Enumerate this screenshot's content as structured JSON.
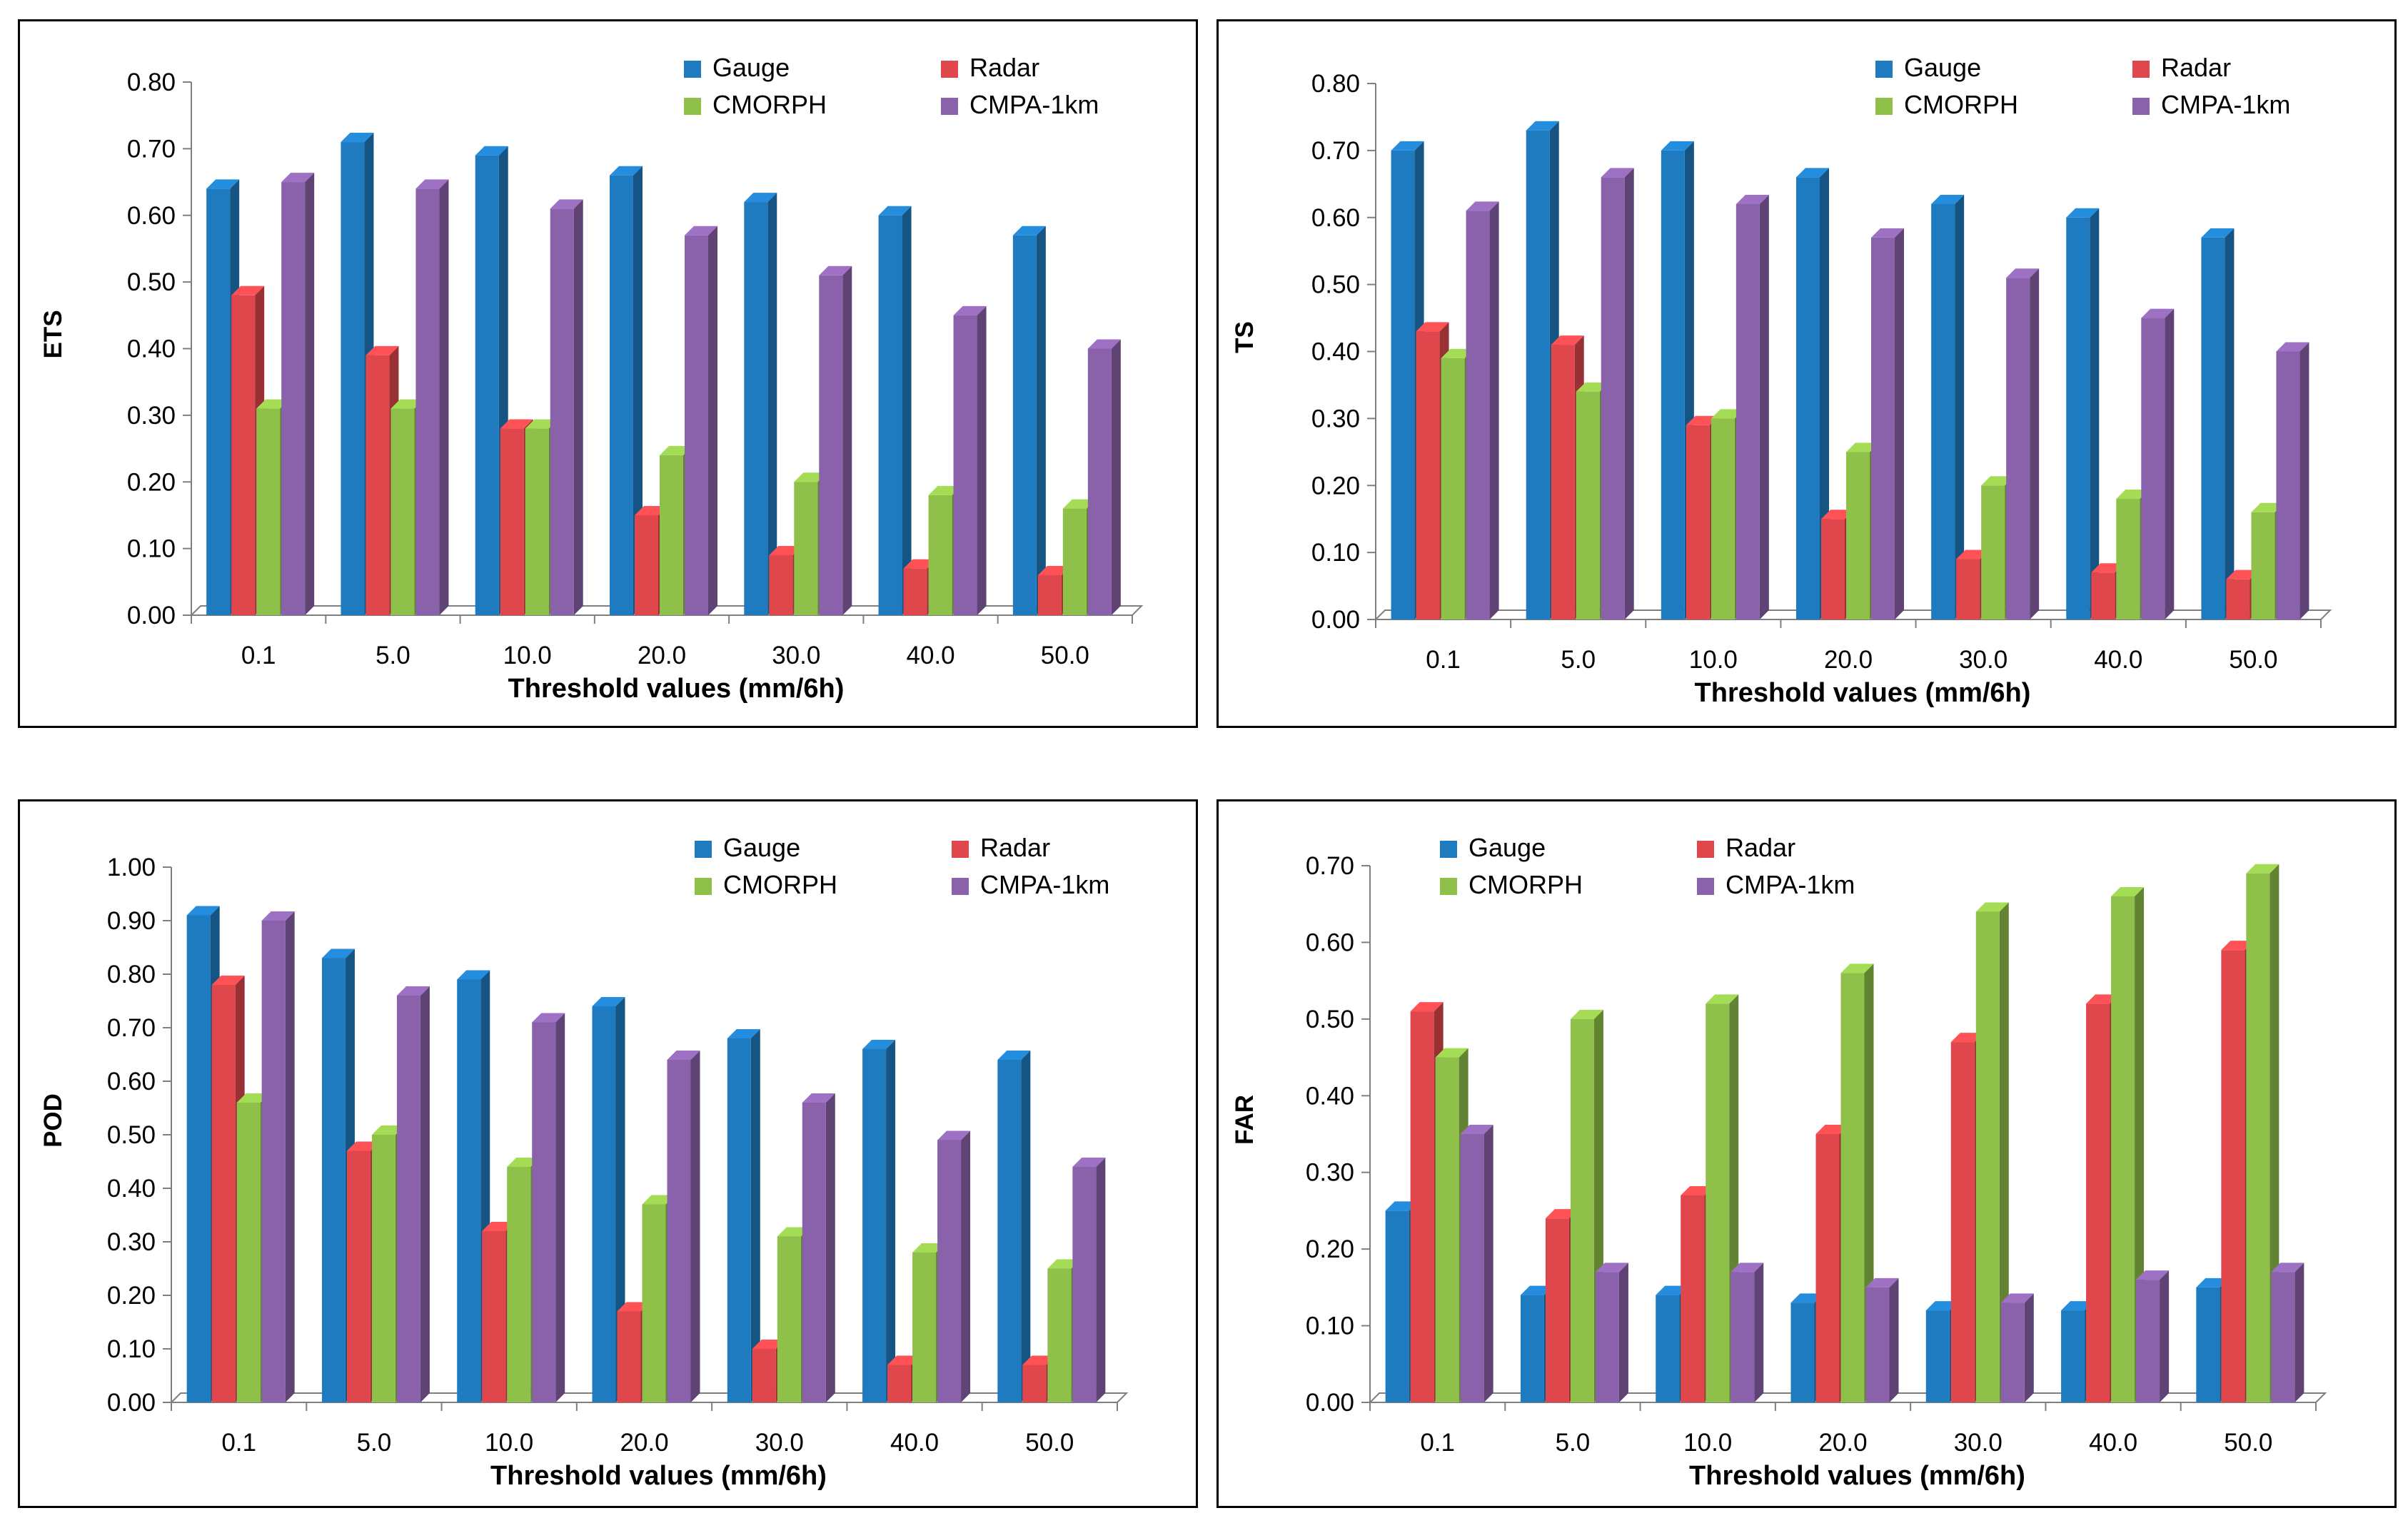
{
  "colors": {
    "gauge": "#1f7bc0",
    "radar": "#e0474c",
    "cmorph": "#8fc04a",
    "cmpa": "#8a62ab"
  },
  "charts": [
    {
      "type": "bar",
      "title": "",
      "ylabel": "ETS",
      "xlabel": "Threshold values (mm/6h)",
      "categories": [
        "0.1",
        "5.0",
        "10.0",
        "20.0",
        "30.0",
        "40.0",
        "50.0"
      ],
      "ylim": [
        0,
        0.8
      ],
      "yticks": [
        "0.00",
        "0.10",
        "0.20",
        "0.30",
        "0.40",
        "0.50",
        "0.60",
        "0.70",
        "0.80"
      ],
      "legend_position": "top-right",
      "series": [
        {
          "name": "Gauge",
          "values": [
            0.64,
            0.71,
            0.69,
            0.66,
            0.62,
            0.6,
            0.57
          ]
        },
        {
          "name": "Radar",
          "values": [
            0.48,
            0.39,
            0.28,
            0.15,
            0.09,
            0.07,
            0.06
          ]
        },
        {
          "name": "CMORPH",
          "values": [
            0.31,
            0.31,
            0.28,
            0.24,
            0.2,
            0.18,
            0.16
          ]
        },
        {
          "name": "CMPA-1km",
          "values": [
            0.65,
            0.64,
            0.61,
            0.57,
            0.51,
            0.45,
            0.4
          ]
        }
      ]
    },
    {
      "type": "bar",
      "title": "",
      "ylabel": "TS",
      "xlabel": "Threshold values (mm/6h)",
      "categories": [
        "0.1",
        "5.0",
        "10.0",
        "20.0",
        "30.0",
        "40.0",
        "50.0"
      ],
      "ylim": [
        0,
        0.8
      ],
      "yticks": [
        "0.00",
        "0.10",
        "0.20",
        "0.30",
        "0.40",
        "0.50",
        "0.60",
        "0.70",
        "0.80"
      ],
      "legend_position": "top-right",
      "series": [
        {
          "name": "Gauge",
          "values": [
            0.7,
            0.73,
            0.7,
            0.66,
            0.62,
            0.6,
            0.57
          ]
        },
        {
          "name": "Radar",
          "values": [
            0.43,
            0.41,
            0.29,
            0.15,
            0.09,
            0.07,
            0.06
          ]
        },
        {
          "name": "CMORPH",
          "values": [
            0.39,
            0.34,
            0.3,
            0.25,
            0.2,
            0.18,
            0.16
          ]
        },
        {
          "name": "CMPA-1km",
          "values": [
            0.61,
            0.66,
            0.62,
            0.57,
            0.51,
            0.45,
            0.4
          ]
        }
      ]
    },
    {
      "type": "bar",
      "title": "",
      "ylabel": "POD",
      "xlabel": "Threshold values (mm/6h)",
      "categories": [
        "0.1",
        "5.0",
        "10.0",
        "20.0",
        "30.0",
        "40.0",
        "50.0"
      ],
      "ylim": [
        0,
        1.0
      ],
      "yticks": [
        "0.00",
        "0.10",
        "0.20",
        "0.30",
        "0.40",
        "0.50",
        "0.60",
        "0.70",
        "0.80",
        "0.90",
        "1.00"
      ],
      "legend_position": "top-right",
      "series": [
        {
          "name": "Gauge",
          "values": [
            0.91,
            0.83,
            0.79,
            0.74,
            0.68,
            0.66,
            0.64
          ]
        },
        {
          "name": "Radar",
          "values": [
            0.78,
            0.47,
            0.32,
            0.17,
            0.1,
            0.07,
            0.07
          ]
        },
        {
          "name": "CMORPH",
          "values": [
            0.56,
            0.5,
            0.44,
            0.37,
            0.31,
            0.28,
            0.25
          ]
        },
        {
          "name": "CMPA-1km",
          "values": [
            0.9,
            0.76,
            0.71,
            0.64,
            0.56,
            0.49,
            0.44
          ]
        }
      ]
    },
    {
      "type": "bar",
      "title": "",
      "ylabel": "FAR",
      "xlabel": "Threshold values (mm/6h)",
      "categories": [
        "0.1",
        "5.0",
        "10.0",
        "20.0",
        "30.0",
        "40.0",
        "50.0"
      ],
      "ylim": [
        0,
        0.7
      ],
      "yticks": [
        "0.00",
        "0.10",
        "0.20",
        "0.30",
        "0.40",
        "0.50",
        "0.60",
        "0.70"
      ],
      "legend_position": "top-left",
      "series": [
        {
          "name": "Gauge",
          "values": [
            0.25,
            0.14,
            0.14,
            0.13,
            0.12,
            0.12,
            0.15
          ]
        },
        {
          "name": "Radar",
          "values": [
            0.51,
            0.24,
            0.27,
            0.35,
            0.47,
            0.52,
            0.59
          ]
        },
        {
          "name": "CMORPH",
          "values": [
            0.45,
            0.5,
            0.52,
            0.56,
            0.64,
            0.66,
            0.69
          ]
        },
        {
          "name": "CMPA-1km",
          "values": [
            0.35,
            0.17,
            0.17,
            0.15,
            0.13,
            0.16,
            0.17
          ]
        }
      ]
    }
  ]
}
